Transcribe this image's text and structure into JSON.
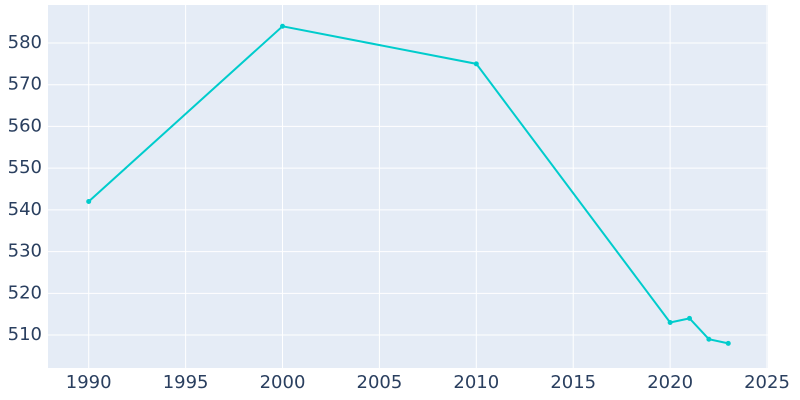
{
  "chart_data": {
    "type": "line",
    "x": [
      1990,
      2000,
      2010,
      2020,
      2021,
      2022,
      2023
    ],
    "series": [
      {
        "color": "#00cccc",
        "values": [
          542,
          584,
          575,
          513,
          514,
          509,
          508
        ]
      }
    ],
    "xlim": [
      1987.9,
      2025.05
    ],
    "xticks": [
      1990,
      1995,
      2000,
      2005,
      2010,
      2015,
      2020,
      2025
    ],
    "ylim": [
      502.1,
      589.1
    ],
    "yticks": [
      510,
      520,
      530,
      540,
      550,
      560,
      570,
      580
    ],
    "grid": true,
    "background": "#e5ecf6"
  }
}
